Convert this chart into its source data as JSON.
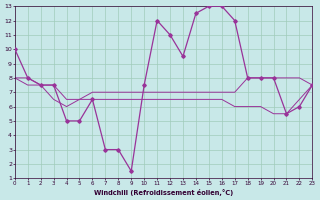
{
  "bg_color": "#c8e8e8",
  "grid_color": "#a0ccbb",
  "line_color": "#993399",
  "spine_color": "#330033",
  "xlabel": "Windchill (Refroidissement éolien,°C)",
  "xlim": [
    0,
    23
  ],
  "ylim": [
    1,
    13
  ],
  "xticks": [
    0,
    1,
    2,
    3,
    4,
    5,
    6,
    7,
    8,
    9,
    10,
    11,
    12,
    13,
    14,
    15,
    16,
    17,
    18,
    19,
    20,
    21,
    22,
    23
  ],
  "yticks": [
    1,
    2,
    3,
    4,
    5,
    6,
    7,
    8,
    9,
    10,
    11,
    12,
    13
  ],
  "line1_x": [
    0,
    1,
    2,
    3,
    4,
    5,
    6,
    7,
    8,
    9,
    10,
    11,
    12,
    13,
    14,
    15,
    16,
    17,
    18,
    19,
    20,
    21,
    22,
    23
  ],
  "line1_y": [
    10,
    8,
    7.5,
    7.5,
    5,
    5,
    6.5,
    3,
    3,
    1.5,
    7.5,
    12,
    11,
    9.5,
    12.5,
    13,
    13,
    12,
    8,
    8,
    8,
    5.5,
    6,
    7.5
  ],
  "line2_x": [
    0,
    1,
    2,
    3,
    4,
    5,
    6,
    7,
    8,
    9,
    10,
    11,
    12,
    13,
    14,
    15,
    16,
    17,
    18,
    19,
    20,
    21,
    22,
    23
  ],
  "line2_y": [
    8,
    8,
    7.5,
    7.5,
    6.5,
    6.5,
    7,
    7,
    7,
    7,
    7,
    7,
    7,
    7,
    7,
    7,
    7,
    7,
    8,
    8,
    8,
    8,
    8,
    7.5
  ],
  "line3_x": [
    0,
    1,
    2,
    3,
    4,
    5,
    6,
    7,
    8,
    9,
    10,
    11,
    12,
    13,
    14,
    15,
    16,
    17,
    18,
    19,
    20,
    21,
    22,
    23
  ],
  "line3_y": [
    8,
    7.5,
    7.5,
    6.5,
    6,
    6.5,
    6.5,
    6.5,
    6.5,
    6.5,
    6.5,
    6.5,
    6.5,
    6.5,
    6.5,
    6.5,
    6.5,
    6,
    6,
    6,
    5.5,
    5.5,
    6.5,
    7.5
  ]
}
